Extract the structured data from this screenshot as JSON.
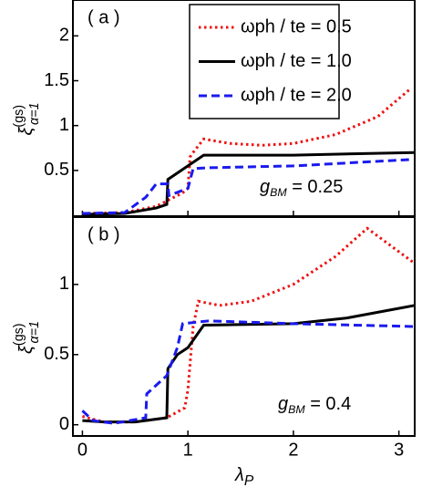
{
  "chart_data": [
    {
      "type": "line",
      "title": "( a )",
      "annotation": {
        "base": "g",
        "sub": "BM",
        "text": " = 0.25"
      },
      "ylabel": {
        "base": "ξ",
        "sup": "(gs)",
        "sub": "α=1"
      },
      "xlim": [
        -0.09,
        3.15
      ],
      "xticks": [
        0,
        1,
        2,
        3
      ],
      "ylim": [
        -0.01,
        2.4
      ],
      "yticks": [
        0.5,
        1,
        1.5,
        2
      ],
      "legend": "top-center",
      "series": [
        {
          "name": "ωph / te = 0.5",
          "color": "#ee1111",
          "linestyle": "dotted",
          "x": [
            0,
            0.4,
            0.7,
            0.95,
            1.0,
            1.02,
            1.05,
            1.15,
            1.4,
            1.7,
            2.0,
            2.4,
            2.8,
            3.1
          ],
          "values": [
            0.02,
            0.03,
            0.1,
            0.25,
            0.3,
            0.65,
            0.7,
            0.85,
            0.8,
            0.78,
            0.8,
            0.9,
            1.1,
            1.4
          ]
        },
        {
          "name": "ωph / te = 1.0",
          "color": "#000000",
          "linestyle": "solid",
          "x": [
            0,
            0.4,
            0.7,
            0.8,
            0.81,
            1.15,
            2.0,
            3.15
          ],
          "values": [
            0.01,
            0.02,
            0.08,
            0.12,
            0.4,
            0.67,
            0.67,
            0.7
          ]
        },
        {
          "name": "ωph / te = 2.0",
          "color": "#1a1aee",
          "linestyle": "dashed",
          "x": [
            0,
            0.4,
            0.6,
            0.7,
            0.81,
            0.82,
            1.0,
            1.05,
            1.2,
            2.0,
            3.1
          ],
          "values": [
            0.02,
            0.03,
            0.2,
            0.35,
            0.35,
            0.22,
            0.3,
            0.52,
            0.53,
            0.55,
            0.62
          ]
        }
      ]
    },
    {
      "type": "line",
      "title": "( b )",
      "annotation": {
        "base": "g",
        "sub": "BM",
        "text": " = 0.4"
      },
      "ylabel": {
        "base": "ξ",
        "sup": "(gs)",
        "sub": "α=1"
      },
      "xlabel": {
        "base": "λ",
        "sub": "P"
      },
      "xlim": [
        -0.09,
        3.15
      ],
      "xticks": [
        0,
        1,
        2,
        3
      ],
      "ylim": [
        -0.08,
        1.48
      ],
      "yticks": [
        0,
        0.5,
        1
      ],
      "series": [
        {
          "color": "#ee1111",
          "linestyle": "dotted",
          "x": [
            0,
            0.2,
            0.5,
            0.8,
            0.97,
            1.0,
            1.05,
            1.1,
            1.3,
            1.6,
            2.0,
            2.4,
            2.7,
            3.15
          ],
          "values": [
            0.06,
            0.02,
            0.02,
            0.05,
            0.12,
            0.25,
            0.7,
            0.88,
            0.85,
            0.88,
            1.0,
            1.2,
            1.4,
            1.15
          ]
        },
        {
          "color": "#000000",
          "linestyle": "solid",
          "x": [
            0,
            0.2,
            0.5,
            0.8,
            0.81,
            0.9,
            1.0,
            1.15,
            2.0,
            2.5,
            3.15
          ],
          "values": [
            0.03,
            0.02,
            0.02,
            0.05,
            0.4,
            0.5,
            0.55,
            0.71,
            0.72,
            0.76,
            0.85
          ]
        },
        {
          "color": "#1a1aee",
          "linestyle": "dashed",
          "x": [
            0,
            0.1,
            0.3,
            0.6,
            0.61,
            0.8,
            0.9,
            0.95,
            1.2,
            2.0,
            3.15
          ],
          "values": [
            0.1,
            0.03,
            0.01,
            0.05,
            0.22,
            0.35,
            0.55,
            0.72,
            0.74,
            0.72,
            0.7
          ]
        }
      ]
    }
  ]
}
